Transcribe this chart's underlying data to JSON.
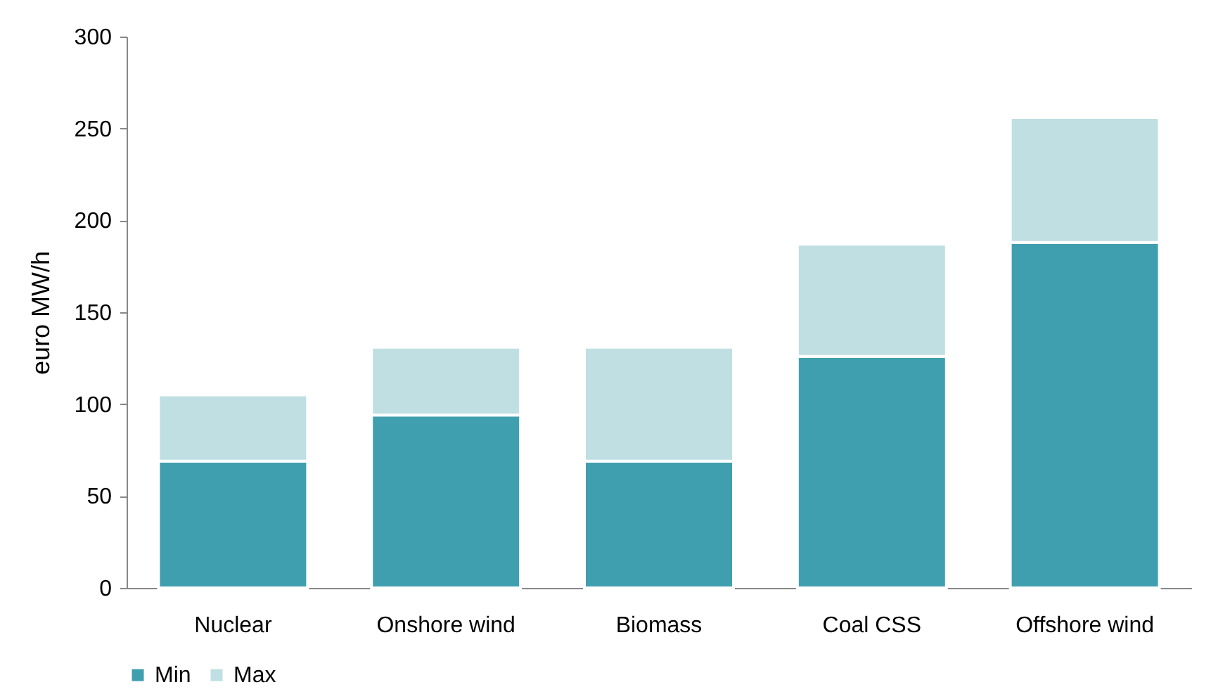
{
  "chart_data": {
    "type": "bar",
    "stacked": true,
    "ylabel": "euro MW/h",
    "categories": [
      "Nuclear",
      "Onshore wind",
      "Biomass",
      "Coal CSS",
      "Offshore wind"
    ],
    "series": [
      {
        "name": "Min",
        "color": "#409fae",
        "values": [
          69,
          94,
          69,
          126,
          188
        ]
      },
      {
        "name": "Max",
        "color": "#bfdfe3",
        "values": [
          36,
          37,
          62,
          61,
          68
        ]
      }
    ],
    "ylim": [
      0,
      300
    ],
    "yticks": [
      0,
      50,
      100,
      150,
      200,
      250,
      300
    ],
    "legend": "bottom"
  }
}
